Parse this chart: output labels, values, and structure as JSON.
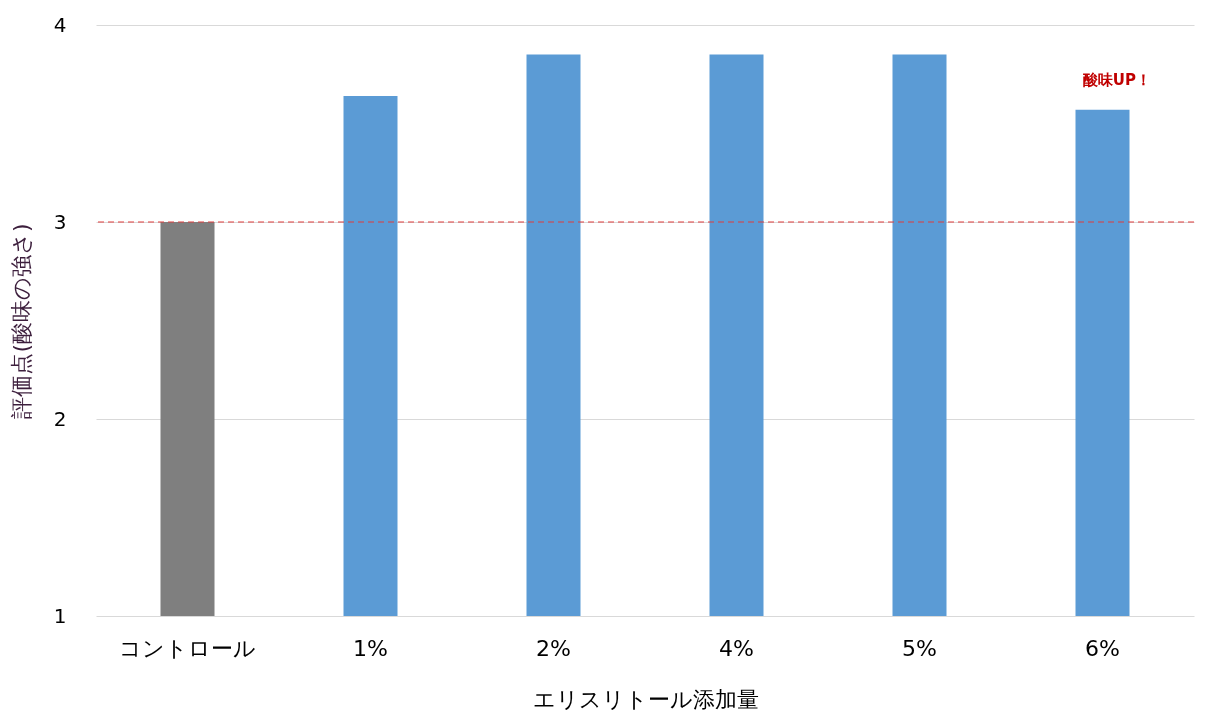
{
  "chart_data": {
    "type": "bar",
    "xlabel": "エリスリトール添加量",
    "ylabel": "評価点(酸味の強さ)",
    "categories": [
      "コントロール",
      "1%",
      "2%",
      "4%",
      "5%",
      "6%"
    ],
    "values": [
      3.0,
      3.64,
      3.85,
      3.85,
      3.85,
      3.57
    ],
    "colors": [
      "#7f7f7f",
      "#5b9bd5",
      "#5b9bd5",
      "#5b9bd5",
      "#5b9bd5",
      "#5b9bd5"
    ],
    "ylim": [
      1,
      4
    ],
    "yticks": [
      1,
      2,
      3,
      4
    ],
    "grid": "y",
    "ref_lines": [
      {
        "axis": "y",
        "value": 3,
        "color": "#e03c3c",
        "line_style": "dashed"
      }
    ],
    "annotations": [
      "酸味UP！"
    ]
  }
}
